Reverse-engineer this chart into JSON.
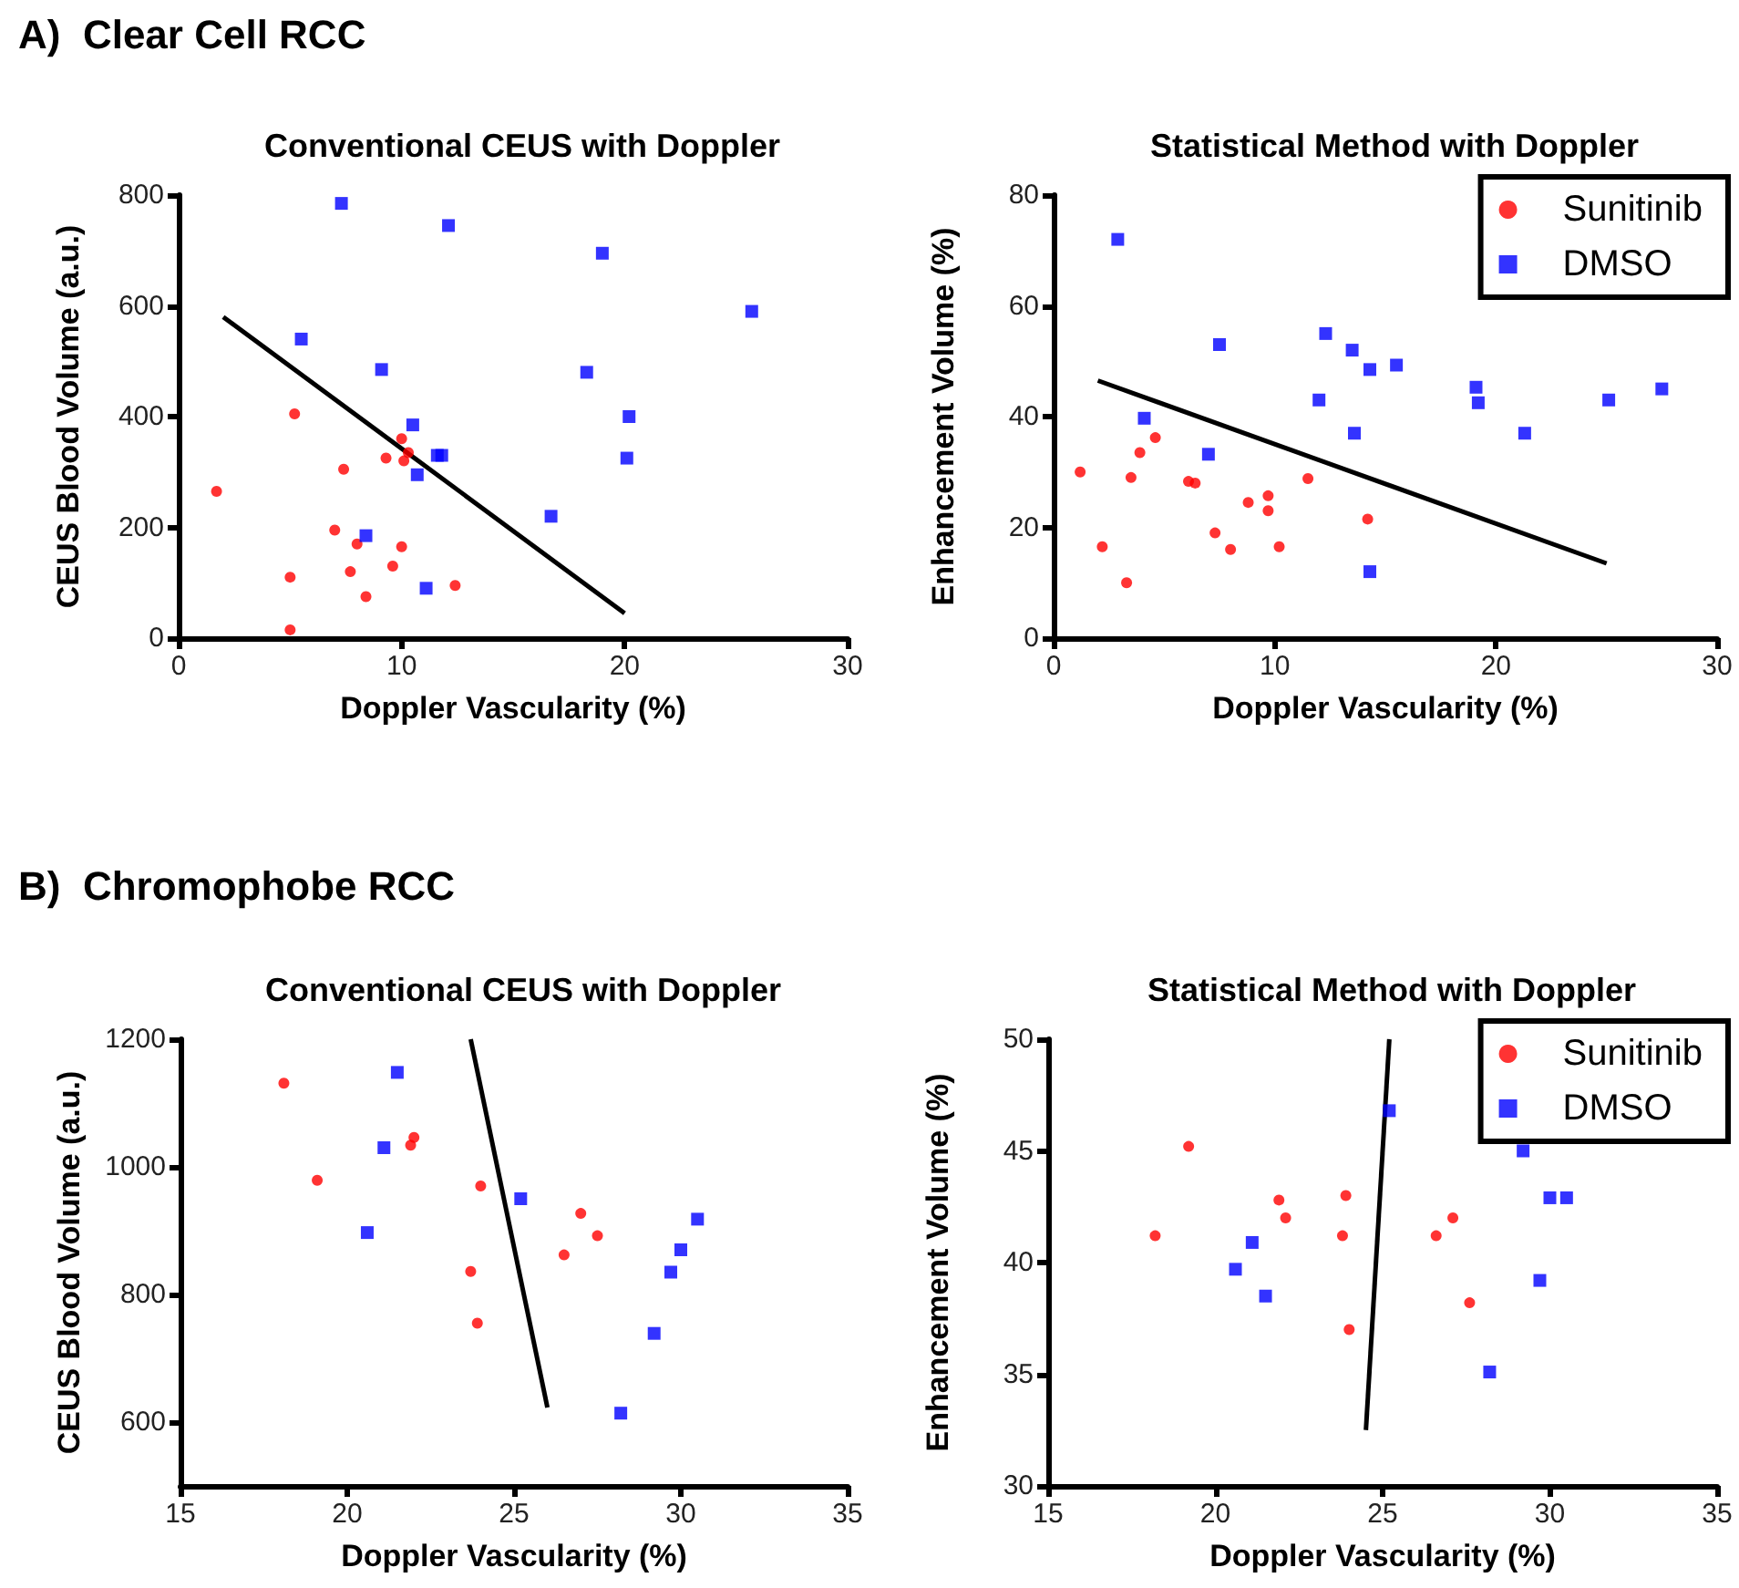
{
  "chart_data": [
    {
      "type": "scatter",
      "title": "Conventional CEUS with Doppler",
      "xlabel": "Doppler Vascularity (%)",
      "ylabel": "CEUS Blood Volume (a.u.)",
      "annotations": [
        "A)  Clear Cell RCC"
      ],
      "xlim": [
        0,
        30
      ],
      "xticks": [
        0,
        10,
        20,
        30
      ],
      "ylim": [
        0,
        800
      ],
      "yticks": [
        0,
        200,
        400,
        600,
        800
      ],
      "grid": false,
      "legend": false,
      "series": [
        {
          "color": "#ff0000",
          "marker": "circle",
          "x": [
            1.7,
            5,
            5,
            5.2,
            7,
            7.4,
            7.7,
            8,
            8.4,
            9.3,
            9.6,
            10,
            10,
            10.1,
            10.3,
            12.4
          ],
          "values": [
            265,
            110,
            15,
            405,
            195,
            305,
            120,
            170,
            75,
            325,
            130,
            165,
            360,
            320,
            335,
            95
          ]
        },
        {
          "color": "#0000ff",
          "marker": "square",
          "x": [
            5.5,
            7.3,
            8.4,
            9.1,
            10.5,
            10.7,
            11.1,
            11.6,
            11.8,
            12.1,
            16.7,
            18.3,
            19,
            20.2,
            20.1,
            25.7
          ],
          "values": [
            540,
            785,
            185,
            485,
            385,
            295,
            90,
            330,
            330,
            745,
            220,
            480,
            695,
            400,
            325,
            590
          ]
        },
        {
          "type": "line",
          "color": "#000000",
          "marker": "none",
          "x": [
            2,
            20
          ],
          "values": [
            580,
            45
          ]
        }
      ]
    },
    {
      "type": "scatter",
      "title": "Statistical Method with Doppler",
      "xlabel": "Doppler Vascularity (%)",
      "ylabel": "Enhancement Volume (%)",
      "xlim": [
        0,
        30
      ],
      "xticks": [
        0,
        10,
        20,
        30
      ],
      "ylim": [
        0,
        80
      ],
      "yticks": [
        0,
        20,
        40,
        60,
        80
      ],
      "grid": false,
      "legend": "top right",
      "series": [
        {
          "name": "Sunitinib",
          "color": "#ff0000",
          "marker": "circle",
          "x": [
            1.2,
            2.2,
            3.3,
            3.5,
            3.9,
            4.6,
            6.1,
            6.4,
            7.3,
            8,
            8.8,
            9.7,
            9.7,
            10.2,
            11.5,
            14.2
          ],
          "values": [
            30,
            16.5,
            10,
            29,
            33.5,
            36.2,
            28.3,
            28,
            19,
            16,
            24.5,
            25.7,
            23,
            16.5,
            28.8,
            21.5
          ]
        },
        {
          "name": "DMSO",
          "color": "#0000ff",
          "marker": "square",
          "x": [
            2.9,
            4.1,
            7,
            7.5,
            12,
            12.3,
            13.5,
            13.6,
            14.3,
            15.5,
            19.1,
            19.2,
            21.3,
            25.1,
            27.5,
            14.3
          ],
          "values": [
            72,
            39.7,
            33.2,
            53,
            43,
            55,
            52,
            37,
            48.5,
            49.3,
            45.3,
            42.5,
            37,
            43,
            45,
            12
          ]
        },
        {
          "type": "line",
          "color": "#000000",
          "marker": "none",
          "x": [
            2,
            25
          ],
          "values": [
            46.5,
            13.5
          ]
        }
      ]
    },
    {
      "type": "scatter",
      "title": "Conventional CEUS with Doppler",
      "xlabel": "Doppler Vascularity (%)",
      "ylabel": "CEUS Blood Volume (a.u.)",
      "annotations": [
        "B)  Chromophobe RCC"
      ],
      "xlim": [
        15,
        35
      ],
      "xticks": [
        15,
        20,
        25,
        30,
        35
      ],
      "ylim": [
        500,
        1200
      ],
      "yticks": [
        600,
        800,
        1000,
        1200
      ],
      "grid": false,
      "legend": false,
      "series": [
        {
          "color": "#ff0000",
          "marker": "circle",
          "x": [
            18.1,
            19.1,
            21.9,
            22,
            24,
            23.7,
            23.9,
            27,
            27.5,
            26.5
          ],
          "values": [
            1131,
            979,
            1034,
            1046,
            970,
            836,
            755,
            927,
            892,
            862
          ]
        },
        {
          "color": "#0000ff",
          "marker": "square",
          "x": [
            21.5,
            21.1,
            20.6,
            25.2,
            30.5,
            30,
            29.7,
            29.2,
            28.2
          ],
          "values": [
            1148,
            1030,
            897,
            950,
            918,
            870,
            835,
            739,
            614
          ]
        },
        {
          "type": "line",
          "color": "#000000",
          "marker": "none",
          "x": [
            23.7,
            26
          ],
          "values": [
            1200,
            623
          ]
        }
      ]
    },
    {
      "type": "scatter",
      "title": "Statistical Method with Doppler",
      "xlabel": "Doppler Vascularity (%)",
      "ylabel": "Enhancement Volume (%)",
      "xlim": [
        15,
        35
      ],
      "xticks": [
        15,
        20,
        25,
        30,
        35
      ],
      "ylim": [
        30,
        50
      ],
      "yticks": [
        30,
        35,
        40,
        45,
        50
      ],
      "grid": false,
      "legend": "top right",
      "series": [
        {
          "name": "Sunitinib",
          "color": "#ff0000",
          "marker": "circle",
          "x": [
            18.2,
            19.2,
            21.9,
            22.1,
            23.9,
            23.8,
            24,
            26.6,
            27.1,
            27.6
          ],
          "values": [
            41.2,
            45.2,
            42.8,
            42,
            43,
            41.2,
            37,
            41.2,
            42,
            38.2
          ]
        },
        {
          "name": "DMSO",
          "color": "#0000ff",
          "marker": "square",
          "x": [
            25.2,
            21.1,
            20.6,
            21.5,
            29.2,
            30,
            30.5,
            29.7,
            28.2
          ],
          "values": [
            46.8,
            40.9,
            39.7,
            38.5,
            45,
            42.9,
            42.9,
            39.2,
            35.1
          ]
        },
        {
          "type": "line",
          "color": "#000000",
          "marker": "none",
          "x": [
            25.2,
            24.5
          ],
          "values": [
            50,
            32.5
          ]
        }
      ]
    }
  ]
}
